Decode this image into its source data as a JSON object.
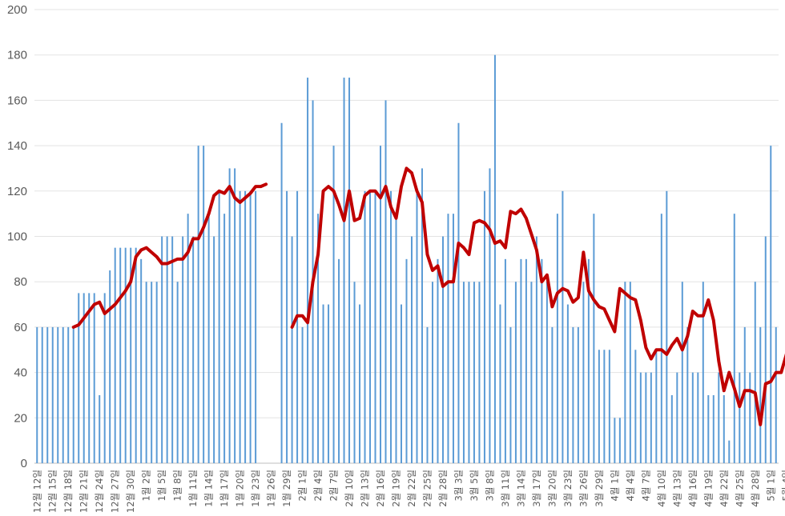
{
  "chart_data": {
    "type": "bar",
    "title": "",
    "xlabel": "",
    "ylabel": "",
    "ylim": [
      0,
      200
    ],
    "yticks": [
      0,
      20,
      40,
      60,
      80,
      100,
      120,
      140,
      160,
      180,
      200
    ],
    "grid": true,
    "legend": "none",
    "colors": {
      "bar": "#5b9bd5",
      "line": "#c00000",
      "grid": "#e3e3e3",
      "text": "#595959"
    },
    "x_tick_labels": [
      "12월 12일",
      "12월 15일",
      "12월 18일",
      "12월 21일",
      "12월 24일",
      "12월 27일",
      "12월 30일",
      "1월 2일",
      "1월 5일",
      "1월 8일",
      "1월 11일",
      "1월 14일",
      "1월 17일",
      "1월 20일",
      "1월 23일",
      "1월 26일",
      "1월 29일",
      "2월 1일",
      "2월 4일",
      "2월 7일",
      "2월 10일",
      "2월 13일",
      "2월 16일",
      "2월 19일",
      "2월 22일",
      "2월 25일",
      "2월 28일",
      "3월 3일",
      "3월 5일",
      "3월 8일",
      "3월 11일",
      "3월 14일",
      "3월 17일",
      "3월 20일",
      "3월 23일",
      "3월 26일",
      "3월 29일",
      "4월 1일",
      "4월 4일",
      "4월 7일",
      "4월 10일",
      "4월 13일",
      "4월 16일",
      "4월 19일",
      "4월 22일",
      "4월 25일",
      "4월 28일",
      "5월 1일",
      "5월 4일"
    ],
    "series": [
      {
        "name": "daily",
        "kind": "bar",
        "values": [
          60,
          60,
          60,
          60,
          60,
          60,
          60,
          60,
          75,
          75,
          75,
          75,
          30,
          75,
          85,
          95,
          95,
          95,
          95,
          95,
          90,
          80,
          80,
          80,
          100,
          100,
          100,
          80,
          100,
          110,
          100,
          140,
          140,
          110,
          100,
          120,
          110,
          130,
          130,
          120,
          120,
          120,
          120,
          0,
          0,
          0,
          0,
          150,
          120,
          100,
          120,
          60,
          170,
          160,
          110,
          70,
          70,
          140,
          90,
          170,
          170,
          80,
          70,
          120,
          120,
          120,
          140,
          160,
          120,
          110,
          70,
          90,
          100,
          120,
          130,
          60,
          80,
          90,
          100,
          110,
          110,
          150,
          80,
          80,
          80,
          80,
          120,
          130,
          180,
          70,
          90,
          60,
          80,
          90,
          90,
          80,
          100,
          90,
          80,
          60,
          110,
          120,
          70,
          60,
          60,
          80,
          90,
          110,
          50,
          50,
          50,
          20,
          20,
          80,
          80,
          50,
          40,
          40,
          40,
          50,
          110,
          120,
          30,
          40,
          80,
          60,
          40,
          40,
          80,
          30,
          30,
          40,
          30,
          10,
          110,
          40,
          60,
          40,
          80,
          60,
          100,
          140,
          60
        ]
      },
      {
        "name": "trend",
        "kind": "line",
        "start_index": 7,
        "values": [
          60,
          61,
          64,
          67,
          70,
          71,
          66,
          68,
          70,
          73,
          76,
          80,
          91,
          94,
          95,
          93,
          91,
          88,
          88,
          89,
          90,
          90,
          93,
          99,
          99,
          104,
          110,
          118,
          120,
          119,
          122,
          117,
          115,
          117,
          119,
          122,
          122,
          123,
          null,
          null,
          null,
          null,
          60,
          65,
          65,
          62,
          80,
          92,
          120,
          122,
          120,
          114,
          107,
          120,
          107,
          108,
          118,
          120,
          120,
          117,
          122,
          113,
          108,
          122,
          130,
          128,
          120,
          115,
          92,
          85,
          87,
          78,
          80,
          80,
          97,
          95,
          92,
          106,
          107,
          106,
          103,
          97,
          98,
          95,
          111,
          110,
          112,
          108,
          101,
          94,
          80,
          83,
          69,
          75,
          77,
          76,
          71,
          73,
          93,
          76,
          72,
          69,
          68,
          63,
          58,
          77,
          75,
          73,
          72,
          63,
          51,
          46,
          50,
          50,
          48,
          52,
          55,
          50,
          56,
          67,
          65,
          65,
          72,
          63,
          45,
          32,
          40,
          33,
          25,
          32,
          32,
          31,
          17,
          35,
          36,
          40,
          40,
          48,
          58,
          56,
          73,
          73,
          73
        ]
      }
    ]
  }
}
